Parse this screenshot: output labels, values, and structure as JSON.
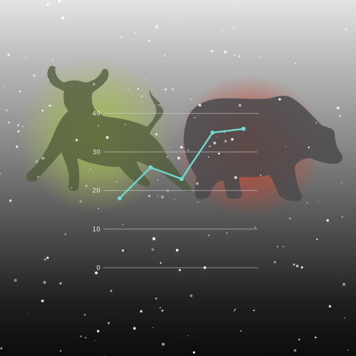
{
  "chart_data": {
    "type": "line",
    "x": [
      1,
      2,
      3,
      4,
      5
    ],
    "series": [
      {
        "values": [
          18,
          26,
          23,
          35,
          36
        ]
      }
    ],
    "yticks": [
      0,
      10,
      20,
      30,
      40
    ],
    "ylim": [
      0,
      45
    ],
    "grid": true,
    "line_color": "#6fd8cf",
    "background": {
      "left_figure": "bull-silhouette",
      "right_figure": "bear-silhouette",
      "bull_glow_color": "#a8c24a",
      "bear_glow_color": "#cc3a22"
    }
  }
}
